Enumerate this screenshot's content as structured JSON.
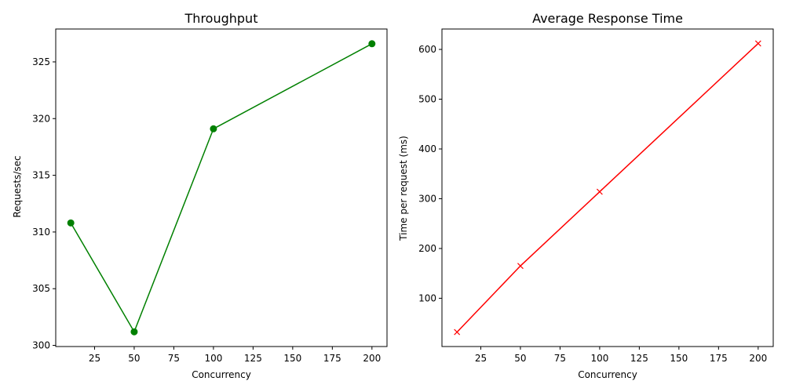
{
  "chart_data": [
    {
      "type": "line",
      "title": "Throughput",
      "xlabel": "Concurrency",
      "ylabel": "Requests/sec",
      "x": [
        10,
        50,
        100,
        200
      ],
      "series": [
        {
          "values": [
            310.8,
            301.2,
            319.1,
            326.6
          ],
          "color": "#008000",
          "marker": "circle"
        }
      ],
      "xlim": [
        0.5,
        209.5
      ],
      "ylim": [
        299.9,
        327.9
      ],
      "xticks": [
        25,
        50,
        75,
        100,
        125,
        150,
        175,
        200
      ],
      "yticks": [
        300,
        305,
        310,
        315,
        320,
        325
      ],
      "grid": false
    },
    {
      "type": "line",
      "title": "Average Response Time",
      "xlabel": "Concurrency",
      "ylabel": "Time per request (ms)",
      "x": [
        10,
        50,
        100,
        200
      ],
      "series": [
        {
          "values": [
            32,
            165,
            314,
            612
          ],
          "color": "#ff0000",
          "marker": "x"
        }
      ],
      "xlim": [
        0.5,
        209.5
      ],
      "ylim": [
        3,
        641
      ],
      "xticks": [
        25,
        50,
        75,
        100,
        125,
        150,
        175,
        200
      ],
      "yticks": [
        100,
        200,
        300,
        400,
        500,
        600
      ],
      "grid": false
    }
  ]
}
